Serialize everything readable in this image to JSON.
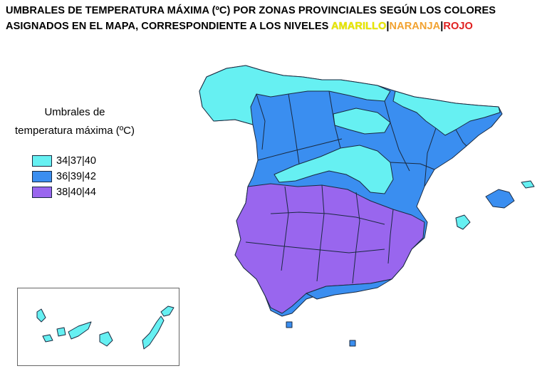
{
  "title": {
    "line1": "UMBRALES DE TEMPERATURA MÁXIMA (ºC) POR ZONAS PROVINCIALES SEGÚN LOS COLORES",
    "line2_prefix": "ASIGNADOS EN EL MAPA, CORRESPONDIENTE  A  LOS  NIVELES",
    "levels": [
      "AMARILLO",
      "NARANJA",
      "ROJO"
    ],
    "separator": "|"
  },
  "legend": {
    "title_line1": "Umbrales de",
    "title_line2": "temperatura máxima (ºC)",
    "items": [
      {
        "label": "34|37|40",
        "color": "#66f0f2"
      },
      {
        "label": "36|39|42",
        "color": "#3a8ef0"
      },
      {
        "label": "38|40|44",
        "color": "#9966ee"
      }
    ]
  },
  "colors": {
    "level_yellow": "#e8e600",
    "level_orange": "#f2a230",
    "level_red": "#e02020",
    "border": "#1a2a40"
  }
}
